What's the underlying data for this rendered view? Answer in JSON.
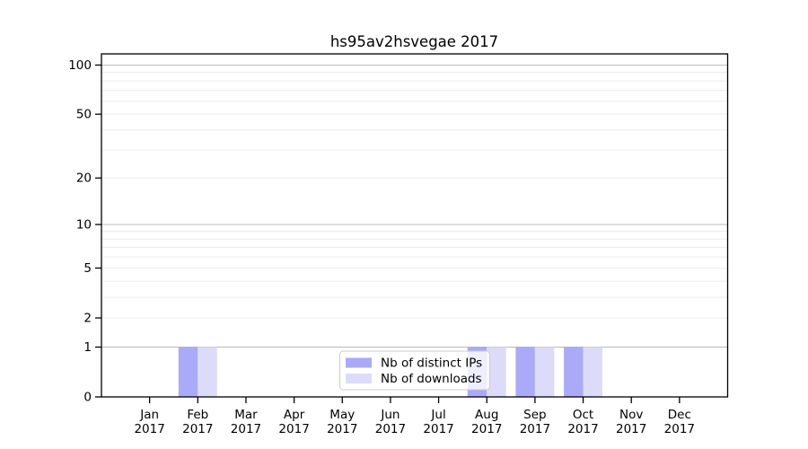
{
  "chart_data": {
    "type": "bar",
    "title": "hs95av2hsvegae 2017",
    "categories": [
      "Jan 2017",
      "Feb 2017",
      "Mar 2017",
      "Apr 2017",
      "May 2017",
      "Jun 2017",
      "Jul 2017",
      "Aug 2017",
      "Sep 2017",
      "Oct 2017",
      "Nov 2017",
      "Dec 2017"
    ],
    "series": [
      {
        "name": "Nb of distinct IPs",
        "color": "#aaaaf8",
        "values": [
          0,
          1,
          0,
          0,
          0,
          0,
          0,
          1,
          1,
          1,
          0,
          0
        ]
      },
      {
        "name": "Nb of downloads",
        "color": "#dcdcfa",
        "values": [
          0,
          1,
          0,
          0,
          0,
          0,
          0,
          1,
          1,
          1,
          0,
          0
        ]
      }
    ],
    "yscale": "log1p",
    "ylim": [
      0,
      117
    ],
    "yticks": [
      0,
      1,
      2,
      5,
      10,
      20,
      50,
      100
    ],
    "minor_gridline_values": [
      2,
      3,
      4,
      5,
      6,
      7,
      8,
      9,
      20,
      30,
      40,
      50,
      60,
      70,
      80,
      90
    ],
    "decade_gridline_values": [
      1,
      10,
      100
    ],
    "grid": true,
    "legend_position": "lower center",
    "colors": {
      "background": "#ffffff",
      "axis": "#000000",
      "grid_minor": "#ececec",
      "grid_decade": "#bbbbbb",
      "legend_border": "#cccccc",
      "legend_fill": "rgba(255,255,255,0.8)"
    }
  }
}
